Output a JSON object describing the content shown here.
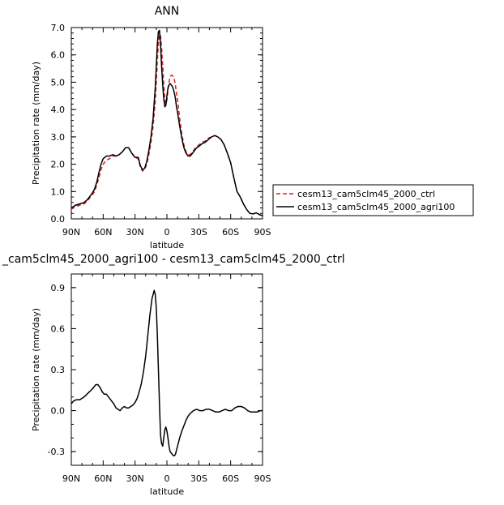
{
  "chart_data": [
    {
      "type": "line",
      "title": "ANN",
      "xlabel": "latitude",
      "ylabel": "Precipitation rate (mm/day)",
      "xlim": [
        90,
        -90
      ],
      "ylim": [
        0,
        7
      ],
      "xticks": [
        90,
        60,
        30,
        0,
        -30,
        -60,
        -90
      ],
      "xtick_labels": [
        "90N",
        "60N",
        "30N",
        "0",
        "30S",
        "60S",
        "90S"
      ],
      "yticks": [
        0,
        1,
        2,
        3,
        4,
        5,
        6,
        7
      ],
      "ytick_labels": [
        "0.0",
        "1.0",
        "2.0",
        "3.0",
        "4.0",
        "5.0",
        "6.0",
        "7.0"
      ],
      "grid": false,
      "legend_position": "outside-right",
      "series": [
        {
          "name": "cesm13_cam5clm45_2000_ctrl",
          "color": "#d42020",
          "dash": "dashed",
          "x": [
            90,
            86,
            82,
            78,
            75,
            72,
            70,
            68,
            66,
            64,
            62,
            60,
            57,
            54,
            51,
            48,
            45,
            42,
            39,
            36,
            33,
            30,
            27,
            25,
            23,
            21,
            19,
            17,
            15,
            13,
            11,
            10,
            9,
            8,
            7,
            6,
            5,
            4,
            3,
            2,
            1,
            0,
            -1,
            -2,
            -3,
            -4,
            -5,
            -6,
            -7,
            -8,
            -9,
            -10,
            -12,
            -14,
            -16,
            -18,
            -20,
            -22,
            -24,
            -26,
            -28,
            -30,
            -33,
            -36,
            -39,
            -42,
            -45,
            -48,
            -51,
            -54,
            -57,
            -60,
            -63,
            -66,
            -69,
            -72,
            -75,
            -78,
            -81,
            -84,
            -86,
            -88,
            -90
          ],
          "y": [
            0.35,
            0.45,
            0.5,
            0.55,
            0.65,
            0.8,
            0.9,
            1.0,
            1.25,
            1.5,
            1.8,
            2.0,
            2.15,
            2.2,
            2.3,
            2.3,
            2.35,
            2.45,
            2.6,
            2.6,
            2.4,
            2.25,
            2.2,
            1.9,
            1.75,
            1.8,
            2.0,
            2.35,
            2.8,
            3.4,
            4.3,
            5.0,
            5.8,
            6.4,
            6.75,
            6.7,
            6.3,
            5.6,
            4.9,
            4.4,
            4.2,
            4.35,
            4.7,
            5.0,
            5.2,
            5.25,
            5.25,
            5.2,
            5.1,
            4.9,
            4.6,
            4.35,
            3.7,
            3.1,
            2.7,
            2.45,
            2.35,
            2.35,
            2.45,
            2.55,
            2.65,
            2.7,
            2.8,
            2.85,
            2.95,
            3.0,
            3.05,
            3.0,
            2.9,
            2.7,
            2.4,
            2.05,
            1.5,
            1.0,
            0.8,
            0.55,
            0.35,
            0.2,
            0.18,
            0.22,
            0.18,
            0.14,
            0.12
          ]
        },
        {
          "name": "cesm13_cam5clm45_2000_agri100",
          "color": "#000000",
          "dash": "solid",
          "x": [
            90,
            86,
            82,
            78,
            75,
            72,
            70,
            68,
            66,
            64,
            62,
            60,
            57,
            54,
            51,
            48,
            45,
            42,
            39,
            36,
            33,
            30,
            27,
            25,
            23,
            21,
            19,
            17,
            15,
            13,
            11,
            10,
            9,
            8,
            7,
            6,
            5,
            4,
            3,
            2,
            1,
            0,
            -1,
            -2,
            -3,
            -4,
            -5,
            -6,
            -7,
            -8,
            -9,
            -10,
            -12,
            -14,
            -16,
            -18,
            -20,
            -22,
            -24,
            -26,
            -28,
            -30,
            -33,
            -36,
            -39,
            -42,
            -45,
            -48,
            -51,
            -54,
            -57,
            -60,
            -63,
            -66,
            -69,
            -72,
            -75,
            -78,
            -81,
            -84,
            -86,
            -88,
            -90
          ],
          "y": [
            0.4,
            0.5,
            0.55,
            0.6,
            0.7,
            0.85,
            0.95,
            1.1,
            1.35,
            1.7,
            2.0,
            2.2,
            2.3,
            2.3,
            2.35,
            2.3,
            2.35,
            2.45,
            2.6,
            2.6,
            2.4,
            2.25,
            2.25,
            1.95,
            1.8,
            1.85,
            2.1,
            2.5,
            3.0,
            3.7,
            4.8,
            5.6,
            6.4,
            6.85,
            6.9,
            6.4,
            5.6,
            4.9,
            4.4,
            4.1,
            4.15,
            4.5,
            4.8,
            4.9,
            4.95,
            4.9,
            4.85,
            4.75,
            4.6,
            4.4,
            4.1,
            3.9,
            3.4,
            2.95,
            2.6,
            2.4,
            2.3,
            2.3,
            2.4,
            2.5,
            2.6,
            2.65,
            2.75,
            2.8,
            2.9,
            3.0,
            3.05,
            3.0,
            2.9,
            2.7,
            2.4,
            2.05,
            1.5,
            1.0,
            0.8,
            0.55,
            0.35,
            0.2,
            0.18,
            0.22,
            0.18,
            0.14,
            0.12
          ]
        }
      ]
    },
    {
      "type": "line",
      "title": "_cam5clm45_2000_agri100 - cesm13_cam5clm45_2000_ctrl",
      "xlabel": "latitude",
      "ylabel": "Precipitation rate (mm/day)",
      "xlim": [
        90,
        -90
      ],
      "ylim": [
        -0.4,
        1.0
      ],
      "xticks": [
        90,
        60,
        30,
        0,
        -30,
        -60,
        -90
      ],
      "xtick_labels": [
        "90N",
        "60N",
        "30N",
        "0",
        "30S",
        "60S",
        "90S"
      ],
      "yticks": [
        -0.3,
        0.0,
        0.3,
        0.6,
        0.9
      ],
      "ytick_labels": [
        "-0.3",
        "0.0",
        "0.3",
        "0.6",
        "0.9"
      ],
      "grid": false,
      "series": [
        {
          "color": "#000000",
          "dash": "solid",
          "x": [
            90,
            88,
            85,
            82,
            78,
            74,
            70,
            67,
            65,
            63,
            61,
            59,
            57,
            55,
            52,
            50,
            48,
            46,
            44,
            42,
            40,
            38,
            36,
            34,
            32,
            30,
            28,
            26,
            24,
            22,
            20,
            18,
            16,
            14,
            12,
            11,
            10,
            9,
            8,
            7,
            6,
            5,
            4,
            3,
            2,
            1,
            0,
            -1,
            -2,
            -3,
            -4,
            -5,
            -6,
            -7,
            -8,
            -9,
            -10,
            -12,
            -14,
            -16,
            -18,
            -20,
            -22,
            -25,
            -28,
            -31,
            -34,
            -37,
            -40,
            -43,
            -46,
            -49,
            -52,
            -55,
            -58,
            -61,
            -64,
            -67,
            -70,
            -73,
            -76,
            -79,
            -82,
            -85,
            -88,
            -90
          ],
          "y": [
            0.05,
            0.07,
            0.08,
            0.08,
            0.1,
            0.13,
            0.16,
            0.19,
            0.19,
            0.17,
            0.14,
            0.12,
            0.12,
            0.1,
            0.07,
            0.05,
            0.02,
            0.01,
            0.0,
            0.02,
            0.03,
            0.02,
            0.02,
            0.03,
            0.04,
            0.06,
            0.09,
            0.14,
            0.2,
            0.29,
            0.4,
            0.55,
            0.7,
            0.82,
            0.88,
            0.85,
            0.75,
            0.55,
            0.3,
            0.05,
            -0.18,
            -0.24,
            -0.26,
            -0.2,
            -0.14,
            -0.12,
            -0.15,
            -0.2,
            -0.26,
            -0.3,
            -0.31,
            -0.32,
            -0.33,
            -0.33,
            -0.32,
            -0.29,
            -0.26,
            -0.2,
            -0.15,
            -0.11,
            -0.07,
            -0.04,
            -0.02,
            0.0,
            0.01,
            0.0,
            0.0,
            0.01,
            0.01,
            0.0,
            -0.01,
            -0.01,
            0.0,
            0.01,
            0.0,
            0.0,
            0.02,
            0.03,
            0.03,
            0.02,
            0.0,
            -0.01,
            -0.01,
            -0.01,
            0.0,
            0.0
          ]
        }
      ]
    }
  ]
}
